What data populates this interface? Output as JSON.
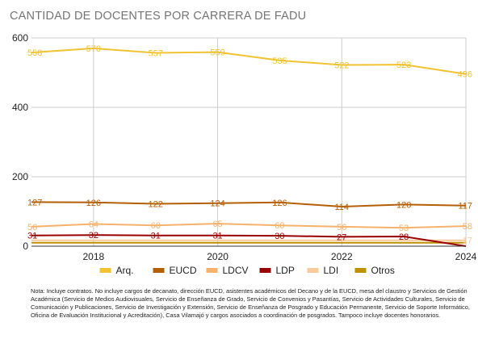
{
  "title": "CANTIDAD DE DOCENTES POR CARRERA DE FADU",
  "note": "Nota: Incluye contratos. No incluye cargos de decanato, dirección EUCD, asistentes académicos del Decano y de la EUCD, mesa del claustro y Servicios de Gestión Académica (Servicio de Medios Audiovisuales, Servicio de Enseñanza de Grado, Servicio de Convenios y Pasantías, Servicio de Actividades Culturales, Servicio de Comunicación y Publicaciones, Servicio de Investigación y Extensión, Servicio de Enseñanza de Posgrado y Educación Permanente, Servicio de Soporte Informático, Oficina de Evaluación Institucional y Acreditación), Casa Vilamajó y cargos asociados a coordinación de posgrados. Tampoco incluye docentes honorarios.",
  "chart_data": {
    "type": "line",
    "x": [
      2017,
      2018,
      2019,
      2020,
      2021,
      2022,
      2023,
      2024
    ],
    "x_ticks": [
      "2018",
      "2020",
      "2022",
      "2024"
    ],
    "x_tick_values": [
      2018,
      2020,
      2022,
      2024
    ],
    "y_ticks": [
      "0",
      "200",
      "400",
      "600"
    ],
    "y_tick_values": [
      0,
      200,
      400,
      600
    ],
    "ylim": [
      0,
      600
    ],
    "grid": true,
    "legend_position": "bottom",
    "series": [
      {
        "name": "Arq.",
        "color": "#f1c232",
        "values": [
          558,
          570,
          557,
          559,
          535,
          522,
          523,
          496
        ],
        "labeled": true
      },
      {
        "name": "EUCD",
        "color": "#b45f06",
        "values": [
          127,
          126,
          122,
          124,
          126,
          114,
          120,
          117
        ],
        "labeled": true
      },
      {
        "name": "LDCV",
        "color": "#f6b26b",
        "values": [
          56,
          64,
          60,
          65,
          60,
          56,
          53,
          58
        ],
        "labeled": true
      },
      {
        "name": "LDP",
        "color": "#990000",
        "values": [
          31,
          32,
          31,
          31,
          30,
          27,
          28,
          0
        ],
        "labeled": true
      },
      {
        "name": "LDI",
        "color": "#f9cb9c",
        "values": [
          17,
          17,
          17,
          17,
          17,
          17,
          17,
          17
        ],
        "labeled": false
      },
      {
        "name": "Otros",
        "color": "#bf9000",
        "values": [
          10,
          10,
          10,
          10,
          10,
          10,
          10,
          10
        ],
        "labeled": false
      }
    ],
    "end_label": "17"
  }
}
